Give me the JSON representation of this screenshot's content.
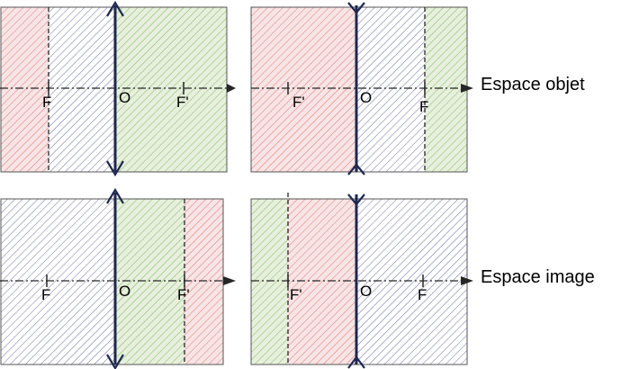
{
  "colors": {
    "red": "#d87878",
    "green": "#88b468",
    "purple": "#7070a0",
    "red_bg": "#f8e4e4",
    "green_bg": "#e6f0dc",
    "purple_bg": "#ffffff",
    "lens": "#1e2850",
    "dash": "#262626"
  },
  "labels": {
    "F": "F",
    "F_prime": "F'",
    "O": "O",
    "espace_objet": "Espace objet",
    "espace_image": "Espace image"
  },
  "panels": [
    {
      "id": "converging-object",
      "lens": "converging",
      "left_to_right": [
        "F",
        "O",
        "F_prime"
      ],
      "zones": [
        "red",
        "purple",
        "green"
      ]
    },
    {
      "id": "diverging-object",
      "lens": "diverging",
      "left_to_right": [
        "F_prime",
        "O",
        "F"
      ],
      "zones": [
        "red",
        "purple",
        "green"
      ]
    },
    {
      "id": "converging-image",
      "lens": "converging",
      "left_to_right": [
        "F",
        "O",
        "F_prime"
      ],
      "zones": [
        "purple",
        "green",
        "red"
      ]
    },
    {
      "id": "diverging-image",
      "lens": "diverging",
      "left_to_right": [
        "F_prime",
        "O",
        "F"
      ],
      "zones": [
        "green",
        "red",
        "purple"
      ]
    }
  ]
}
